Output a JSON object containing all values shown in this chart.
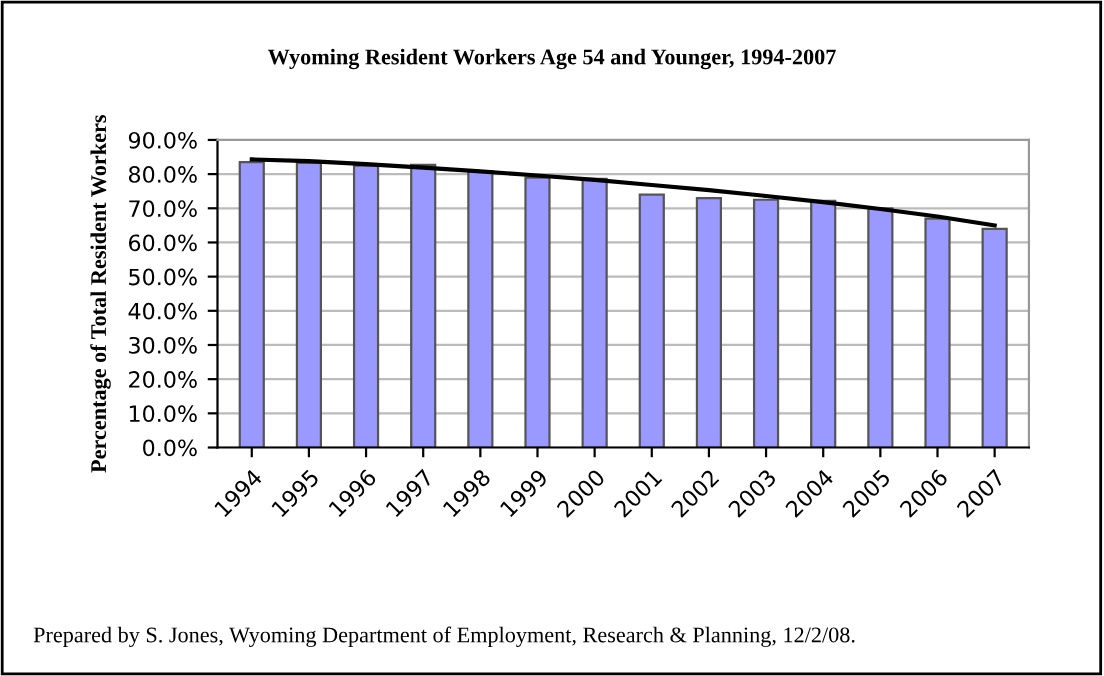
{
  "chart_data": {
    "type": "bar",
    "title": "Wyoming Resident Workers Age 54 and Younger, 1994-2007",
    "ylabel": "Percentage of Total Resident Workers",
    "categories": [
      "1994",
      "1995",
      "1996",
      "1997",
      "1998",
      "1999",
      "2000",
      "2001",
      "2002",
      "2003",
      "2004",
      "2005",
      "2006",
      "2007"
    ],
    "series": [
      {
        "color": "#9999ff",
        "values": [
          83.5,
          83.3,
          82.5,
          82.7,
          80.9,
          79.0,
          78.6,
          74.0,
          73.0,
          72.5,
          72.2,
          70.0,
          67.0,
          64.0
        ]
      },
      {
        "type": "line",
        "color": "#000000",
        "values": [
          84.3,
          83.8,
          82.9,
          81.9,
          80.8,
          79.6,
          78.3,
          76.8,
          75.3,
          73.6,
          71.8,
          69.8,
          67.6,
          65.0
        ]
      }
    ],
    "ylim": [
      0,
      90
    ],
    "yticks": [
      {
        "value": 0,
        "label": "0.0%"
      },
      {
        "value": 10,
        "label": "10.0%"
      },
      {
        "value": 20,
        "label": "20.0%"
      },
      {
        "value": 30,
        "label": "30.0%"
      },
      {
        "value": 40,
        "label": "40.0%"
      },
      {
        "value": 50,
        "label": "50.0%"
      },
      {
        "value": 60,
        "label": "60.0%"
      },
      {
        "value": 70,
        "label": "70.0%"
      },
      {
        "value": 80,
        "label": "80.0%"
      },
      {
        "value": 90,
        "label": "90.0%"
      }
    ],
    "grid": "y",
    "legend": false,
    "annotations": [
      "Prepared by S. Jones, Wyoming Department of Employment, Research & Planning, 12/2/08."
    ]
  }
}
